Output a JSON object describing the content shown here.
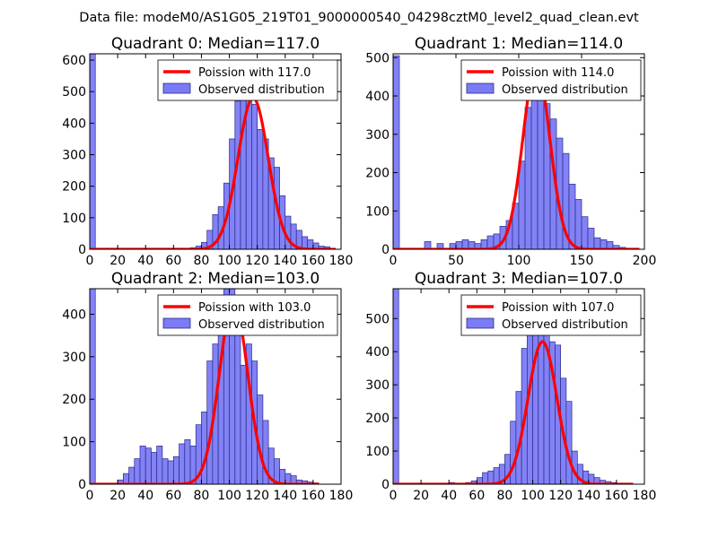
{
  "figure": {
    "suptitle": "Data file: modeM0/AS1G05_219T01_9000000540_04298cztM0_level2_quad_clean.evt"
  },
  "chart_data": [
    {
      "type": "bar",
      "title": "Quadrant 0: Median=117.0",
      "xlim": [
        0,
        180
      ],
      "ylim": [
        0,
        620
      ],
      "xticks": [
        0,
        20,
        40,
        60,
        80,
        100,
        120,
        140,
        160,
        180
      ],
      "yticks": [
        0,
        100,
        200,
        300,
        400,
        500,
        600
      ],
      "bin_width": 4,
      "histogram": {
        "name": "Observed distribution",
        "color": "#7b7bf5",
        "x": [
          0,
          68,
          72,
          76,
          80,
          84,
          88,
          92,
          96,
          100,
          104,
          108,
          112,
          116,
          120,
          124,
          128,
          132,
          136,
          140,
          144,
          148,
          152,
          156,
          160,
          164,
          168,
          172
        ],
        "values": [
          620,
          3,
          5,
          10,
          22,
          60,
          110,
          135,
          210,
          350,
          470,
          500,
          530,
          460,
          380,
          350,
          290,
          260,
          170,
          105,
          80,
          60,
          40,
          30,
          20,
          10,
          8,
          3
        ]
      },
      "curve": {
        "name": "Poission with 117.0",
        "color": "#ff0000",
        "mean": 117.0,
        "peak": 480,
        "xrange": [
          0,
          176
        ]
      }
    },
    {
      "type": "bar",
      "title": "Quadrant 1: Median=114.0",
      "xlim": [
        0,
        200
      ],
      "ylim": [
        0,
        510
      ],
      "xticks": [
        0,
        50,
        100,
        150,
        200
      ],
      "yticks": [
        0,
        100,
        200,
        300,
        400,
        500
      ],
      "bin_width": 5,
      "histogram": {
        "name": "Observed distribution",
        "color": "#7b7bf5",
        "x": [
          0,
          25,
          35,
          45,
          50,
          55,
          60,
          65,
          70,
          75,
          80,
          85,
          90,
          95,
          100,
          105,
          110,
          115,
          120,
          125,
          130,
          135,
          140,
          145,
          150,
          155,
          160,
          165,
          170,
          175,
          180
        ],
        "values": [
          505,
          20,
          15,
          15,
          20,
          25,
          20,
          15,
          25,
          35,
          40,
          60,
          75,
          120,
          230,
          370,
          430,
          450,
          380,
          340,
          290,
          250,
          170,
          130,
          85,
          55,
          30,
          25,
          20,
          10,
          5
        ]
      },
      "curve": {
        "name": "Poission with 114.0",
        "color": "#ff0000",
        "mean": 114.0,
        "peak": 480,
        "xrange": [
          0,
          196
        ]
      }
    },
    {
      "type": "bar",
      "title": "Quadrant 2: Median=103.0",
      "xlim": [
        0,
        180
      ],
      "ylim": [
        0,
        460
      ],
      "xticks": [
        0,
        20,
        40,
        60,
        80,
        100,
        120,
        140,
        160,
        180
      ],
      "yticks": [
        0,
        100,
        200,
        300,
        400
      ],
      "bin_width": 4,
      "histogram": {
        "name": "Observed distribution",
        "color": "#7b7bf5",
        "x": [
          0,
          20,
          24,
          28,
          32,
          36,
          40,
          44,
          48,
          52,
          56,
          60,
          64,
          68,
          72,
          76,
          80,
          84,
          88,
          92,
          96,
          100,
          104,
          108,
          112,
          116,
          120,
          124,
          128,
          132,
          136,
          140,
          144,
          148,
          152,
          156,
          160
        ],
        "values": [
          460,
          10,
          25,
          40,
          60,
          90,
          85,
          75,
          90,
          60,
          55,
          65,
          95,
          105,
          90,
          140,
          170,
          290,
          330,
          400,
          470,
          460,
          370,
          280,
          330,
          290,
          210,
          150,
          85,
          60,
          35,
          25,
          20,
          10,
          8,
          5,
          3
        ]
      },
      "curve": {
        "name": "Poission with 103.0",
        "color": "#ff0000",
        "mean": 103.0,
        "peak": 430,
        "xrange": [
          0,
          164
        ]
      }
    },
    {
      "type": "bar",
      "title": "Quadrant 3: Median=107.0",
      "xlim": [
        0,
        180
      ],
      "ylim": [
        0,
        590
      ],
      "xticks": [
        0,
        20,
        40,
        60,
        80,
        100,
        120,
        140,
        160,
        180
      ],
      "yticks": [
        0,
        100,
        200,
        300,
        400,
        500
      ],
      "bin_width": 4,
      "histogram": {
        "name": "Observed distribution",
        "color": "#7b7bf5",
        "x": [
          0,
          32,
          40,
          52,
          56,
          60,
          64,
          68,
          72,
          76,
          80,
          84,
          88,
          92,
          96,
          100,
          104,
          108,
          112,
          116,
          120,
          124,
          128,
          132,
          136,
          140,
          144,
          148,
          152,
          156,
          160,
          164
        ],
        "values": [
          590,
          3,
          5,
          5,
          10,
          20,
          35,
          40,
          50,
          60,
          90,
          190,
          280,
          410,
          480,
          470,
          560,
          500,
          430,
          420,
          320,
          250,
          100,
          60,
          40,
          30,
          20,
          12,
          8,
          5,
          3,
          2
        ]
      },
      "curve": {
        "name": "Poission with 107.0",
        "color": "#ff0000",
        "mean": 107.0,
        "peak": 430,
        "xrange": [
          0,
          172
        ]
      }
    }
  ]
}
